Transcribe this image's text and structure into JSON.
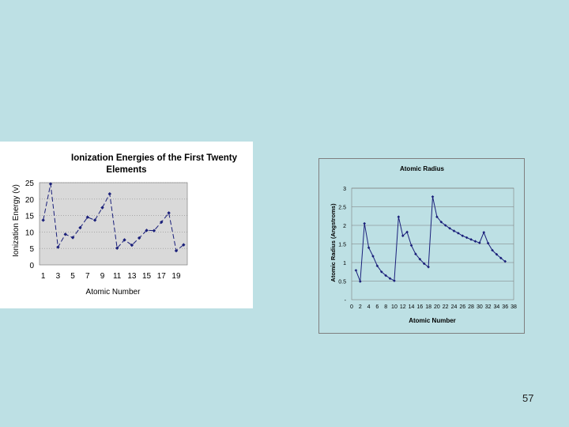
{
  "slide": {
    "number": "57",
    "background": "#bde0e4"
  },
  "chart_data": [
    {
      "type": "line",
      "title_line1": "Ionization Energies of the First Twenty",
      "title_line2": "Elements",
      "xlabel": "Atomic Number",
      "ylabel": "Ionization Energy (v)",
      "ylim": [
        0,
        25
      ],
      "yticks": [
        "0",
        "5",
        "10",
        "15",
        "20",
        "25"
      ],
      "xticks": [
        "1",
        "3",
        "5",
        "7",
        "9",
        "11",
        "13",
        "15",
        "17",
        "19"
      ],
      "x": [
        1,
        2,
        3,
        4,
        5,
        6,
        7,
        8,
        9,
        10,
        11,
        12,
        13,
        14,
        15,
        16,
        17,
        18,
        19,
        20
      ],
      "values": [
        13.6,
        24.6,
        5.4,
        9.3,
        8.3,
        11.3,
        14.5,
        13.6,
        17.4,
        21.6,
        5.1,
        7.6,
        6.0,
        8.2,
        10.5,
        10.4,
        13.0,
        15.8,
        4.3,
        6.1
      ],
      "line_color": "#1a1f7a",
      "plot_background": "#d9d9d9",
      "grid": true
    },
    {
      "type": "line",
      "title": "Atomic Radius",
      "xlabel": "Atomic Number",
      "ylabel": "Atomic Radius (Angstroms)",
      "ylim": [
        0,
        3
      ],
      "yticks": [
        "-",
        "0.5",
        "1",
        "1.5",
        "2",
        "2.5",
        "3"
      ],
      "xlim": [
        0,
        38
      ],
      "xticks": [
        "0",
        "2",
        "4",
        "6",
        "8",
        "10",
        "12",
        "14",
        "16",
        "18",
        "20",
        "22",
        "24",
        "26",
        "28",
        "30",
        "32",
        "34",
        "36",
        "38"
      ],
      "x": [
        1,
        2,
        3,
        4,
        5,
        6,
        7,
        8,
        9,
        10,
        11,
        12,
        13,
        14,
        15,
        16,
        17,
        18,
        19,
        20,
        21,
        22,
        23,
        24,
        25,
        26,
        27,
        28,
        29,
        30,
        31,
        32,
        33,
        34,
        35,
        36
      ],
      "values": [
        0.79,
        0.49,
        2.05,
        1.4,
        1.17,
        0.91,
        0.75,
        0.65,
        0.57,
        0.51,
        2.23,
        1.72,
        1.82,
        1.46,
        1.23,
        1.09,
        0.97,
        0.88,
        2.77,
        2.23,
        2.09,
        2.0,
        1.92,
        1.85,
        1.79,
        1.72,
        1.67,
        1.62,
        1.57,
        1.53,
        1.81,
        1.52,
        1.33,
        1.22,
        1.12,
        1.03
      ],
      "line_color": "#1a1f7a",
      "grid": true
    }
  ]
}
